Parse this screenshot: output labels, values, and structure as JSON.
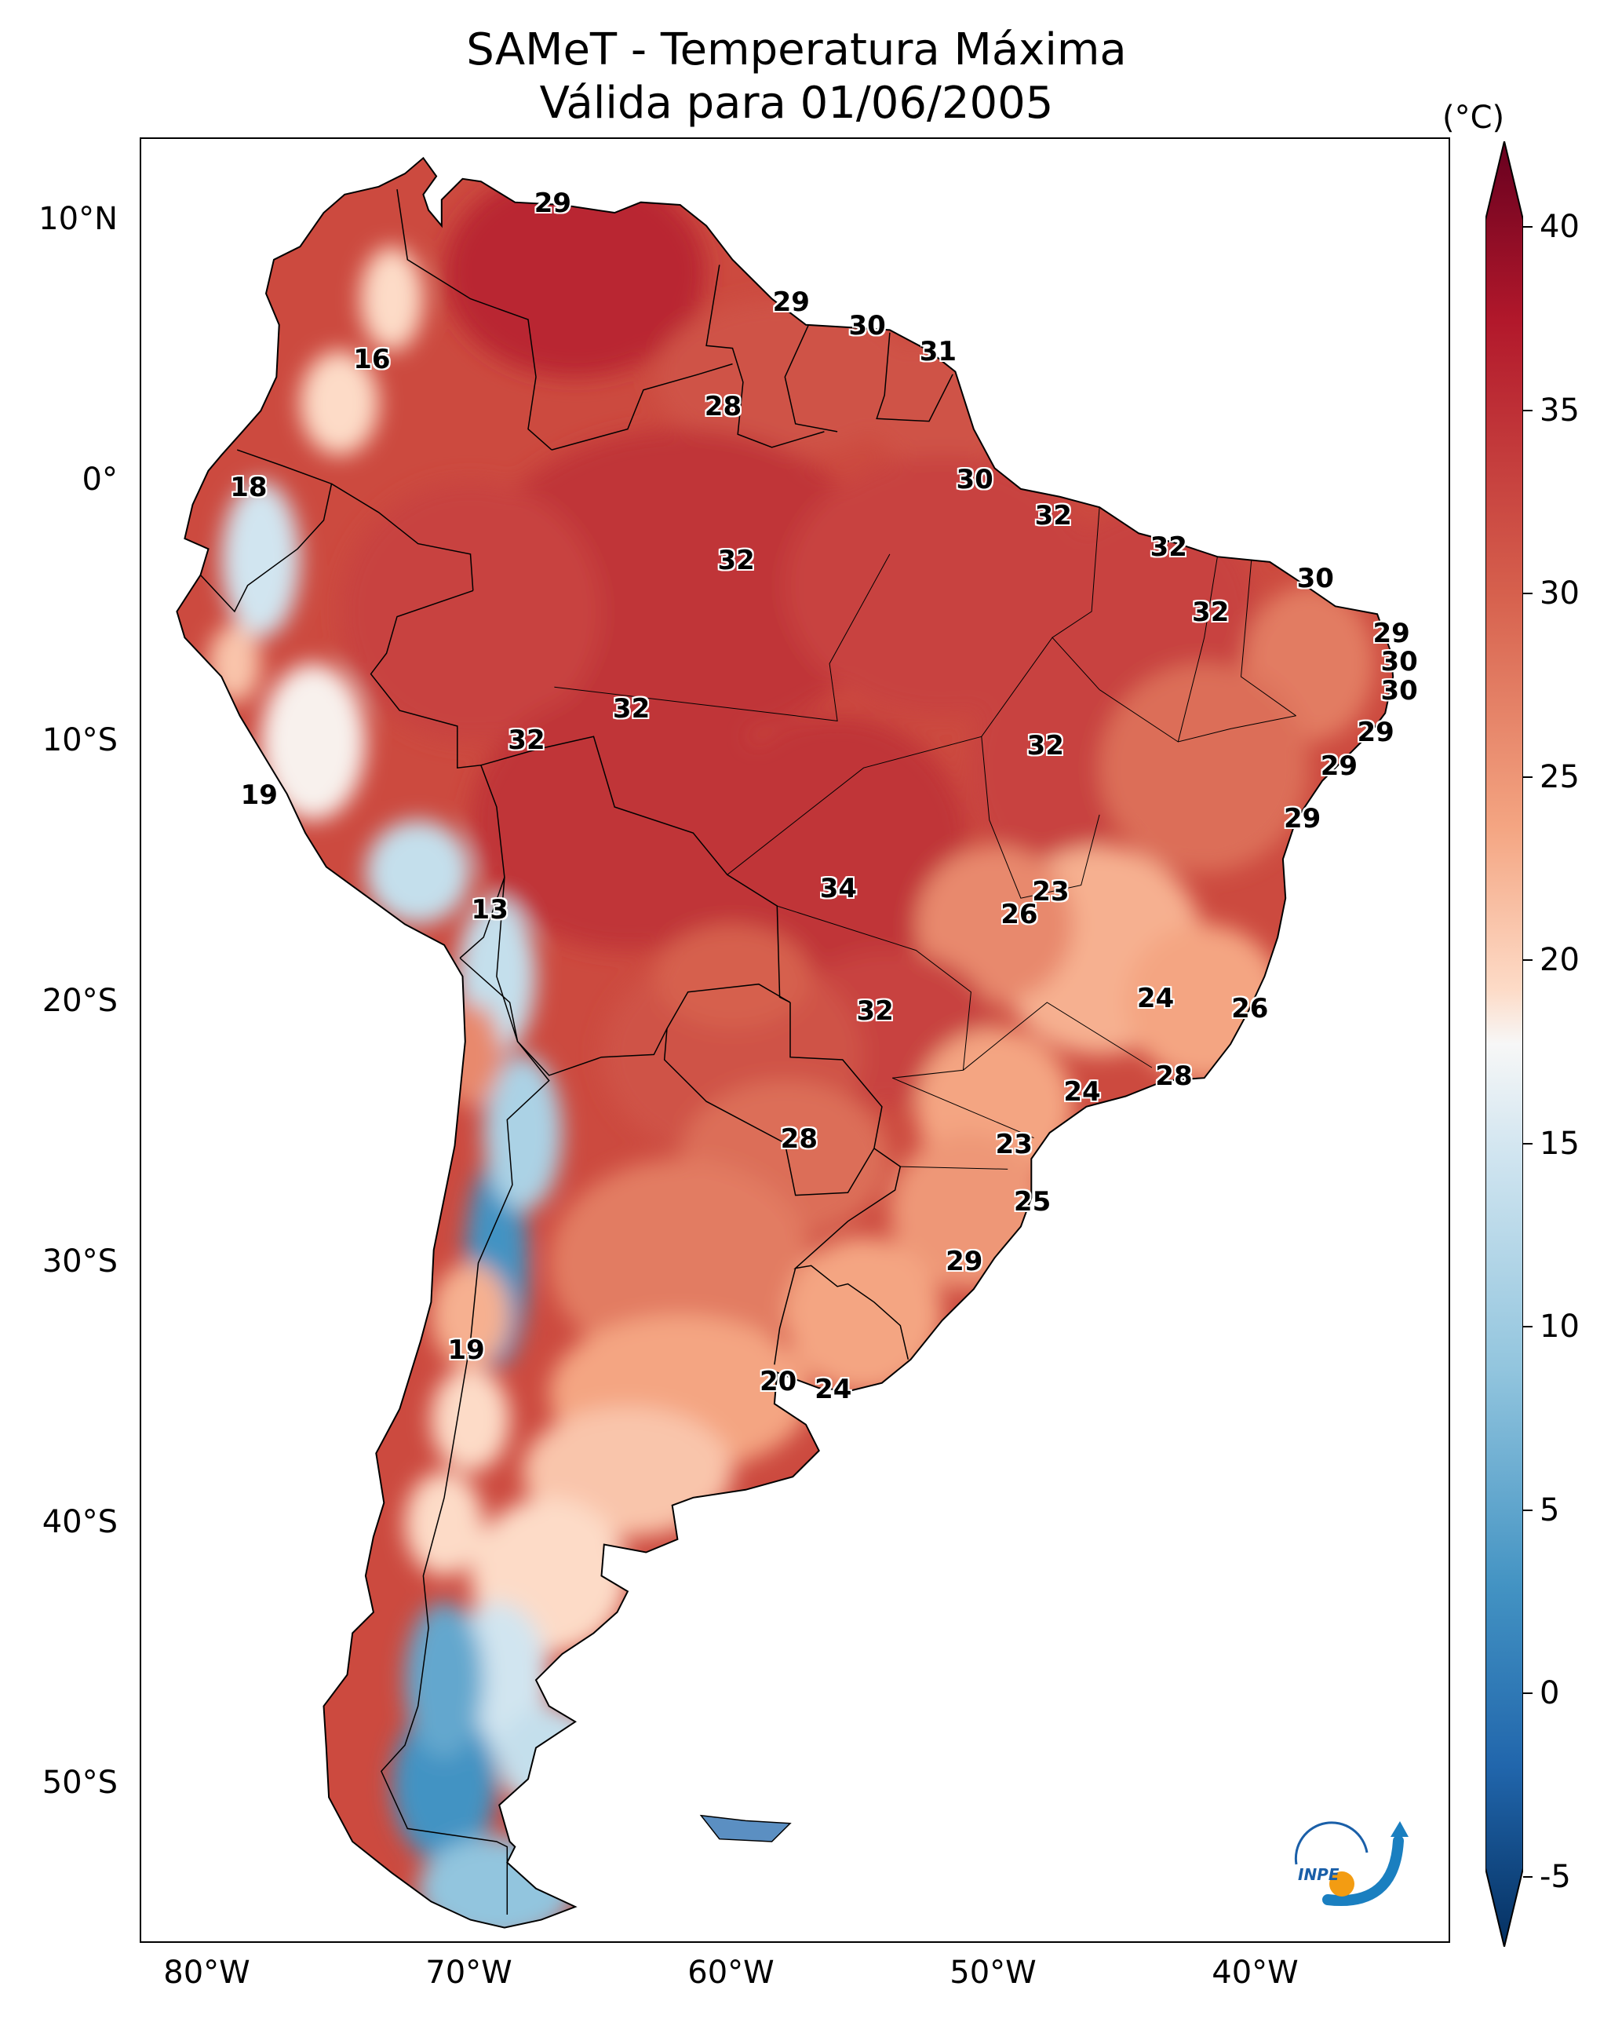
{
  "title": {
    "line1": "SAMeT - Temperatura Máxima",
    "line2": "Válida para 01/06/2005"
  },
  "axes": {
    "lat_ticks": [
      {
        "value": 10,
        "label": "10°N"
      },
      {
        "value": 0,
        "label": "0°"
      },
      {
        "value": -10,
        "label": "10°S"
      },
      {
        "value": -20,
        "label": "20°S"
      },
      {
        "value": -30,
        "label": "30°S"
      },
      {
        "value": -40,
        "label": "40°S"
      },
      {
        "value": -50,
        "label": "50°S"
      }
    ],
    "lon_ticks": [
      {
        "value": -80,
        "label": "80°W"
      },
      {
        "value": -70,
        "label": "70°W"
      },
      {
        "value": -60,
        "label": "60°W"
      },
      {
        "value": -50,
        "label": "50°W"
      },
      {
        "value": -40,
        "label": "40°W"
      }
    ],
    "lon_range": [
      -82.5,
      -32.5
    ],
    "lat_range": [
      -56.5,
      12.8
    ]
  },
  "colorbar": {
    "unit": "(°C)",
    "range": [
      -5,
      40
    ],
    "ticks": [
      {
        "value": 40,
        "label": "40"
      },
      {
        "value": 35,
        "label": "35"
      },
      {
        "value": 30,
        "label": "30"
      },
      {
        "value": 25,
        "label": "25"
      },
      {
        "value": 20,
        "label": "20"
      },
      {
        "value": 15,
        "label": "15"
      },
      {
        "value": 10,
        "label": "10"
      },
      {
        "value": 5,
        "label": "5"
      },
      {
        "value": 0,
        "label": "0"
      },
      {
        "value": -5,
        "label": "-5"
      }
    ],
    "colormap": "RdBu_r"
  },
  "station_labels": [
    {
      "text": "29",
      "lon": -66.8,
      "lat": 10.6
    },
    {
      "text": "16",
      "lon": -73.7,
      "lat": 4.6
    },
    {
      "text": "29",
      "lon": -57.7,
      "lat": 6.8
    },
    {
      "text": "30",
      "lon": -54.8,
      "lat": 5.9
    },
    {
      "text": "31",
      "lon": -52.1,
      "lat": 4.9
    },
    {
      "text": "28",
      "lon": -60.3,
      "lat": 2.8
    },
    {
      "text": "18",
      "lon": -78.4,
      "lat": -0.3
    },
    {
      "text": "30",
      "lon": -50.7,
      "lat": 0.0
    },
    {
      "text": "32",
      "lon": -47.7,
      "lat": -1.4
    },
    {
      "text": "32",
      "lon": -59.8,
      "lat": -3.1
    },
    {
      "text": "32",
      "lon": -43.3,
      "lat": -2.6
    },
    {
      "text": "30",
      "lon": -37.7,
      "lat": -3.8
    },
    {
      "text": "32",
      "lon": -41.7,
      "lat": -5.1
    },
    {
      "text": "29",
      "lon": -34.8,
      "lat": -5.9
    },
    {
      "text": "30",
      "lon": -34.5,
      "lat": -7.0
    },
    {
      "text": "30",
      "lon": -34.5,
      "lat": -8.1
    },
    {
      "text": "32",
      "lon": -63.8,
      "lat": -8.8
    },
    {
      "text": "29",
      "lon": -35.4,
      "lat": -9.7
    },
    {
      "text": "32",
      "lon": -67.8,
      "lat": -10.0
    },
    {
      "text": "32",
      "lon": -48.0,
      "lat": -10.2
    },
    {
      "text": "29",
      "lon": -36.8,
      "lat": -11.0
    },
    {
      "text": "19",
      "lon": -78.0,
      "lat": -12.1
    },
    {
      "text": "29",
      "lon": -38.2,
      "lat": -13.0
    },
    {
      "text": "34",
      "lon": -55.9,
      "lat": -15.7
    },
    {
      "text": "23",
      "lon": -47.8,
      "lat": -15.8
    },
    {
      "text": "26",
      "lon": -49.0,
      "lat": -16.7
    },
    {
      "text": "13",
      "lon": -69.2,
      "lat": -16.5
    },
    {
      "text": "24",
      "lon": -43.8,
      "lat": -19.9
    },
    {
      "text": "26",
      "lon": -40.2,
      "lat": -20.3
    },
    {
      "text": "32",
      "lon": -54.5,
      "lat": -20.4
    },
    {
      "text": "28",
      "lon": -43.1,
      "lat": -22.9
    },
    {
      "text": "24",
      "lon": -46.6,
      "lat": -23.5
    },
    {
      "text": "23",
      "lon": -49.2,
      "lat": -25.5
    },
    {
      "text": "28",
      "lon": -57.4,
      "lat": -25.3
    },
    {
      "text": "25",
      "lon": -48.5,
      "lat": -27.7
    },
    {
      "text": "29",
      "lon": -51.1,
      "lat": -30.0
    },
    {
      "text": "19",
      "lon": -70.1,
      "lat": -33.4
    },
    {
      "text": "20",
      "lon": -58.2,
      "lat": -34.6
    },
    {
      "text": "24",
      "lon": -56.1,
      "lat": -34.9
    }
  ],
  "logo": {
    "text": "INPE"
  }
}
